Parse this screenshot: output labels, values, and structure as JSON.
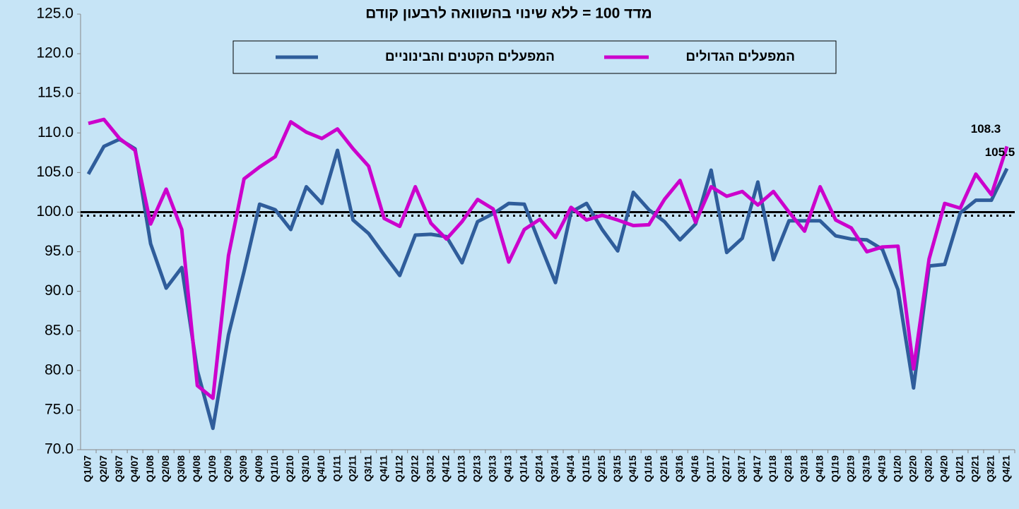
{
  "chart_data": {
    "type": "line",
    "title": "מדד 100 = ללא שינוי בהשוואה לרבעון קודם",
    "categories": [
      "Q1/07",
      "Q2/07",
      "Q3/07",
      "Q4/07",
      "Q1/08",
      "Q2/08",
      "Q3/08",
      "Q4/08",
      "Q1/09",
      "Q2/09",
      "Q3/09",
      "Q4/09",
      "Q1/10",
      "Q2/10",
      "Q3/10",
      "Q4/10",
      "Q1/11",
      "Q2/11",
      "Q3/11",
      "Q4/11",
      "Q1/12",
      "Q2/12",
      "Q3/12",
      "Q4/12",
      "Q1/13",
      "Q2/13",
      "Q3/13",
      "Q4/13",
      "Q1/14",
      "Q2/14",
      "Q3/14",
      "Q4/14",
      "Q1/15",
      "Q2/15",
      "Q3/15",
      "Q4/15",
      "Q1/16",
      "Q2/16",
      "Q3/16",
      "Q4/16",
      "Q1/17",
      "Q2/17",
      "Q3/17",
      "Q4/17",
      "Q1/18",
      "Q2/18",
      "Q3/18",
      "Q4/18",
      "Q1/19",
      "Q2/19",
      "Q3/19",
      "Q4/19",
      "Q1/20",
      "Q2/20",
      "Q3/20",
      "Q4/20",
      "Q1/21",
      "Q2/21",
      "Q3/21",
      "Q4/21"
    ],
    "series": [
      {
        "name": "המפעלים הקטנים והבינוניים",
        "color": "#2f5d9b",
        "values": [
          104.8,
          108.3,
          109.2,
          108.0,
          96.0,
          90.4,
          93.0,
          80.0,
          72.7,
          84.5,
          92.5,
          101.0,
          100.3,
          97.8,
          103.2,
          101.1,
          107.8,
          99.0,
          97.3,
          94.6,
          92.0,
          97.1,
          97.2,
          96.9,
          93.6,
          98.8,
          99.8,
          101.1,
          101.0,
          96.0,
          91.1,
          100.0,
          101.1,
          97.8,
          95.1,
          102.5,
          100.3,
          98.8,
          96.5,
          98.5,
          105.3,
          94.9,
          96.7,
          103.8,
          94.0,
          98.9,
          98.9,
          98.9,
          97.0,
          96.6,
          96.5,
          95.3,
          90.2,
          77.8,
          93.2,
          93.4,
          99.9,
          101.5,
          101.5,
          105.5
        ]
      },
      {
        "name": "המפעלים הגדולים",
        "color": "#cc00cc",
        "values": [
          111.2,
          111.7,
          109.3,
          107.8,
          98.5,
          102.9,
          97.8,
          78.1,
          76.5,
          94.5,
          104.2,
          105.7,
          107.0,
          111.4,
          110.1,
          109.3,
          110.5,
          108.0,
          105.8,
          99.2,
          98.2,
          103.2,
          98.6,
          96.6,
          98.8,
          101.6,
          100.4,
          93.7,
          97.8,
          99.1,
          96.8,
          100.6,
          99.0,
          99.6,
          99.0,
          98.3,
          98.4,
          101.6,
          104.0,
          98.7,
          103.2,
          102.0,
          102.6,
          100.9,
          102.6,
          100.0,
          97.6,
          103.2,
          99.0,
          98.0,
          95.0,
          95.6,
          95.7,
          80.2,
          94.1,
          101.1,
          100.5,
          104.8,
          102.2,
          108.3
        ]
      }
    ],
    "ylim": [
      70,
      125
    ],
    "yticks": [
      {
        "value": 70,
        "label": "70.0"
      },
      {
        "value": 75,
        "label": "75.0"
      },
      {
        "value": 80,
        "label": "80.0"
      },
      {
        "value": 85,
        "label": "85.0"
      },
      {
        "value": 90,
        "label": "90.0"
      },
      {
        "value": 95,
        "label": "95.0"
      },
      {
        "value": 100,
        "label": "100.0"
      },
      {
        "value": 105,
        "label": "105.0"
      },
      {
        "value": 110,
        "label": "110.0"
      },
      {
        "value": 115,
        "label": "115.0"
      },
      {
        "value": 120,
        "label": "120.0"
      },
      {
        "value": 125,
        "label": "125.0"
      }
    ],
    "reference_line": 100
  }
}
